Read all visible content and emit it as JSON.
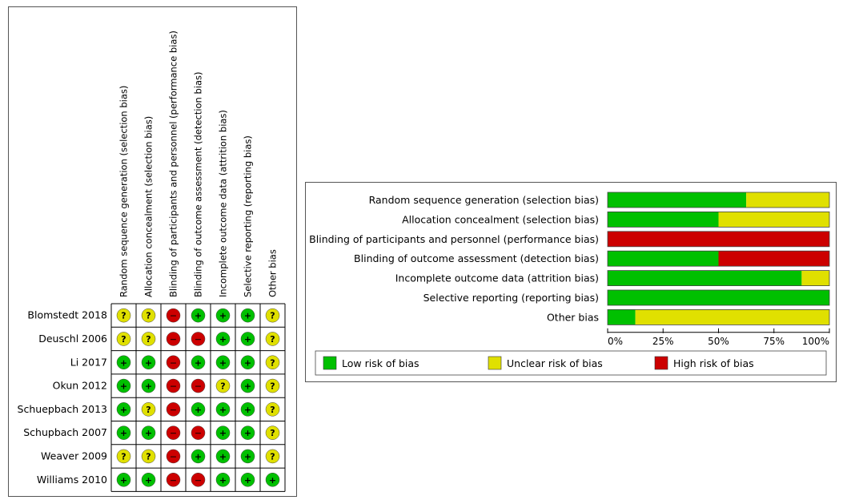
{
  "colors": {
    "low": "#00c000",
    "unclear": "#e0e000",
    "high": "#cc0000"
  },
  "symbols": {
    "low": "+",
    "unclear": "?",
    "high": "−"
  },
  "chart_data": [
    {
      "type": "table",
      "columns": [
        "Random sequence generation (selection bias)",
        "Allocation concealment (selection bias)",
        "Blinding of participants and personnel (performance bias)",
        "Blinding of outcome assessment (detection bias)",
        "Incomplete outcome data (attrition bias)",
        "Selective reporting (reporting bias)",
        "Other bias"
      ],
      "rows": [
        {
          "study": "Blomstedt 2018",
          "judgements": [
            "unclear",
            "unclear",
            "high",
            "low",
            "low",
            "low",
            "unclear"
          ]
        },
        {
          "study": "Deuschl 2006",
          "judgements": [
            "unclear",
            "unclear",
            "high",
            "high",
            "low",
            "low",
            "unclear"
          ]
        },
        {
          "study": "Li 2017",
          "judgements": [
            "low",
            "low",
            "high",
            "low",
            "low",
            "low",
            "unclear"
          ]
        },
        {
          "study": "Okun 2012",
          "judgements": [
            "low",
            "low",
            "high",
            "high",
            "unclear",
            "low",
            "unclear"
          ]
        },
        {
          "study": "Schuepbach 2013",
          "judgements": [
            "low",
            "unclear",
            "high",
            "low",
            "low",
            "low",
            "unclear"
          ]
        },
        {
          "study": "Schupbach 2007",
          "judgements": [
            "low",
            "low",
            "high",
            "high",
            "low",
            "low",
            "unclear"
          ]
        },
        {
          "study": "Weaver 2009",
          "judgements": [
            "unclear",
            "unclear",
            "high",
            "low",
            "low",
            "low",
            "unclear"
          ]
        },
        {
          "study": "Williams 2010",
          "judgements": [
            "low",
            "low",
            "high",
            "high",
            "low",
            "low",
            "low"
          ]
        }
      ]
    },
    {
      "type": "bar",
      "stacked": true,
      "orientation": "horizontal",
      "categories": [
        "Random sequence generation (selection bias)",
        "Allocation concealment (selection bias)",
        "Blinding of participants and personnel (performance bias)",
        "Blinding of outcome assessment (detection bias)",
        "Incomplete outcome data (attrition bias)",
        "Selective reporting (reporting bias)",
        "Other bias"
      ],
      "series": [
        {
          "name": "Low risk of bias",
          "key": "low",
          "values": [
            62.5,
            50,
            0,
            50,
            87.5,
            100,
            12.5
          ]
        },
        {
          "name": "Unclear risk of bias",
          "key": "unclear",
          "values": [
            37.5,
            50,
            0,
            0,
            12.5,
            0,
            87.5
          ]
        },
        {
          "name": "High risk of bias",
          "key": "high",
          "values": [
            0,
            0,
            100,
            50,
            0,
            0,
            0
          ]
        }
      ],
      "xlim": [
        0,
        100
      ],
      "ticks": [
        "0%",
        "25%",
        "50%",
        "75%",
        "100%"
      ],
      "legend_position": "bottom"
    }
  ]
}
